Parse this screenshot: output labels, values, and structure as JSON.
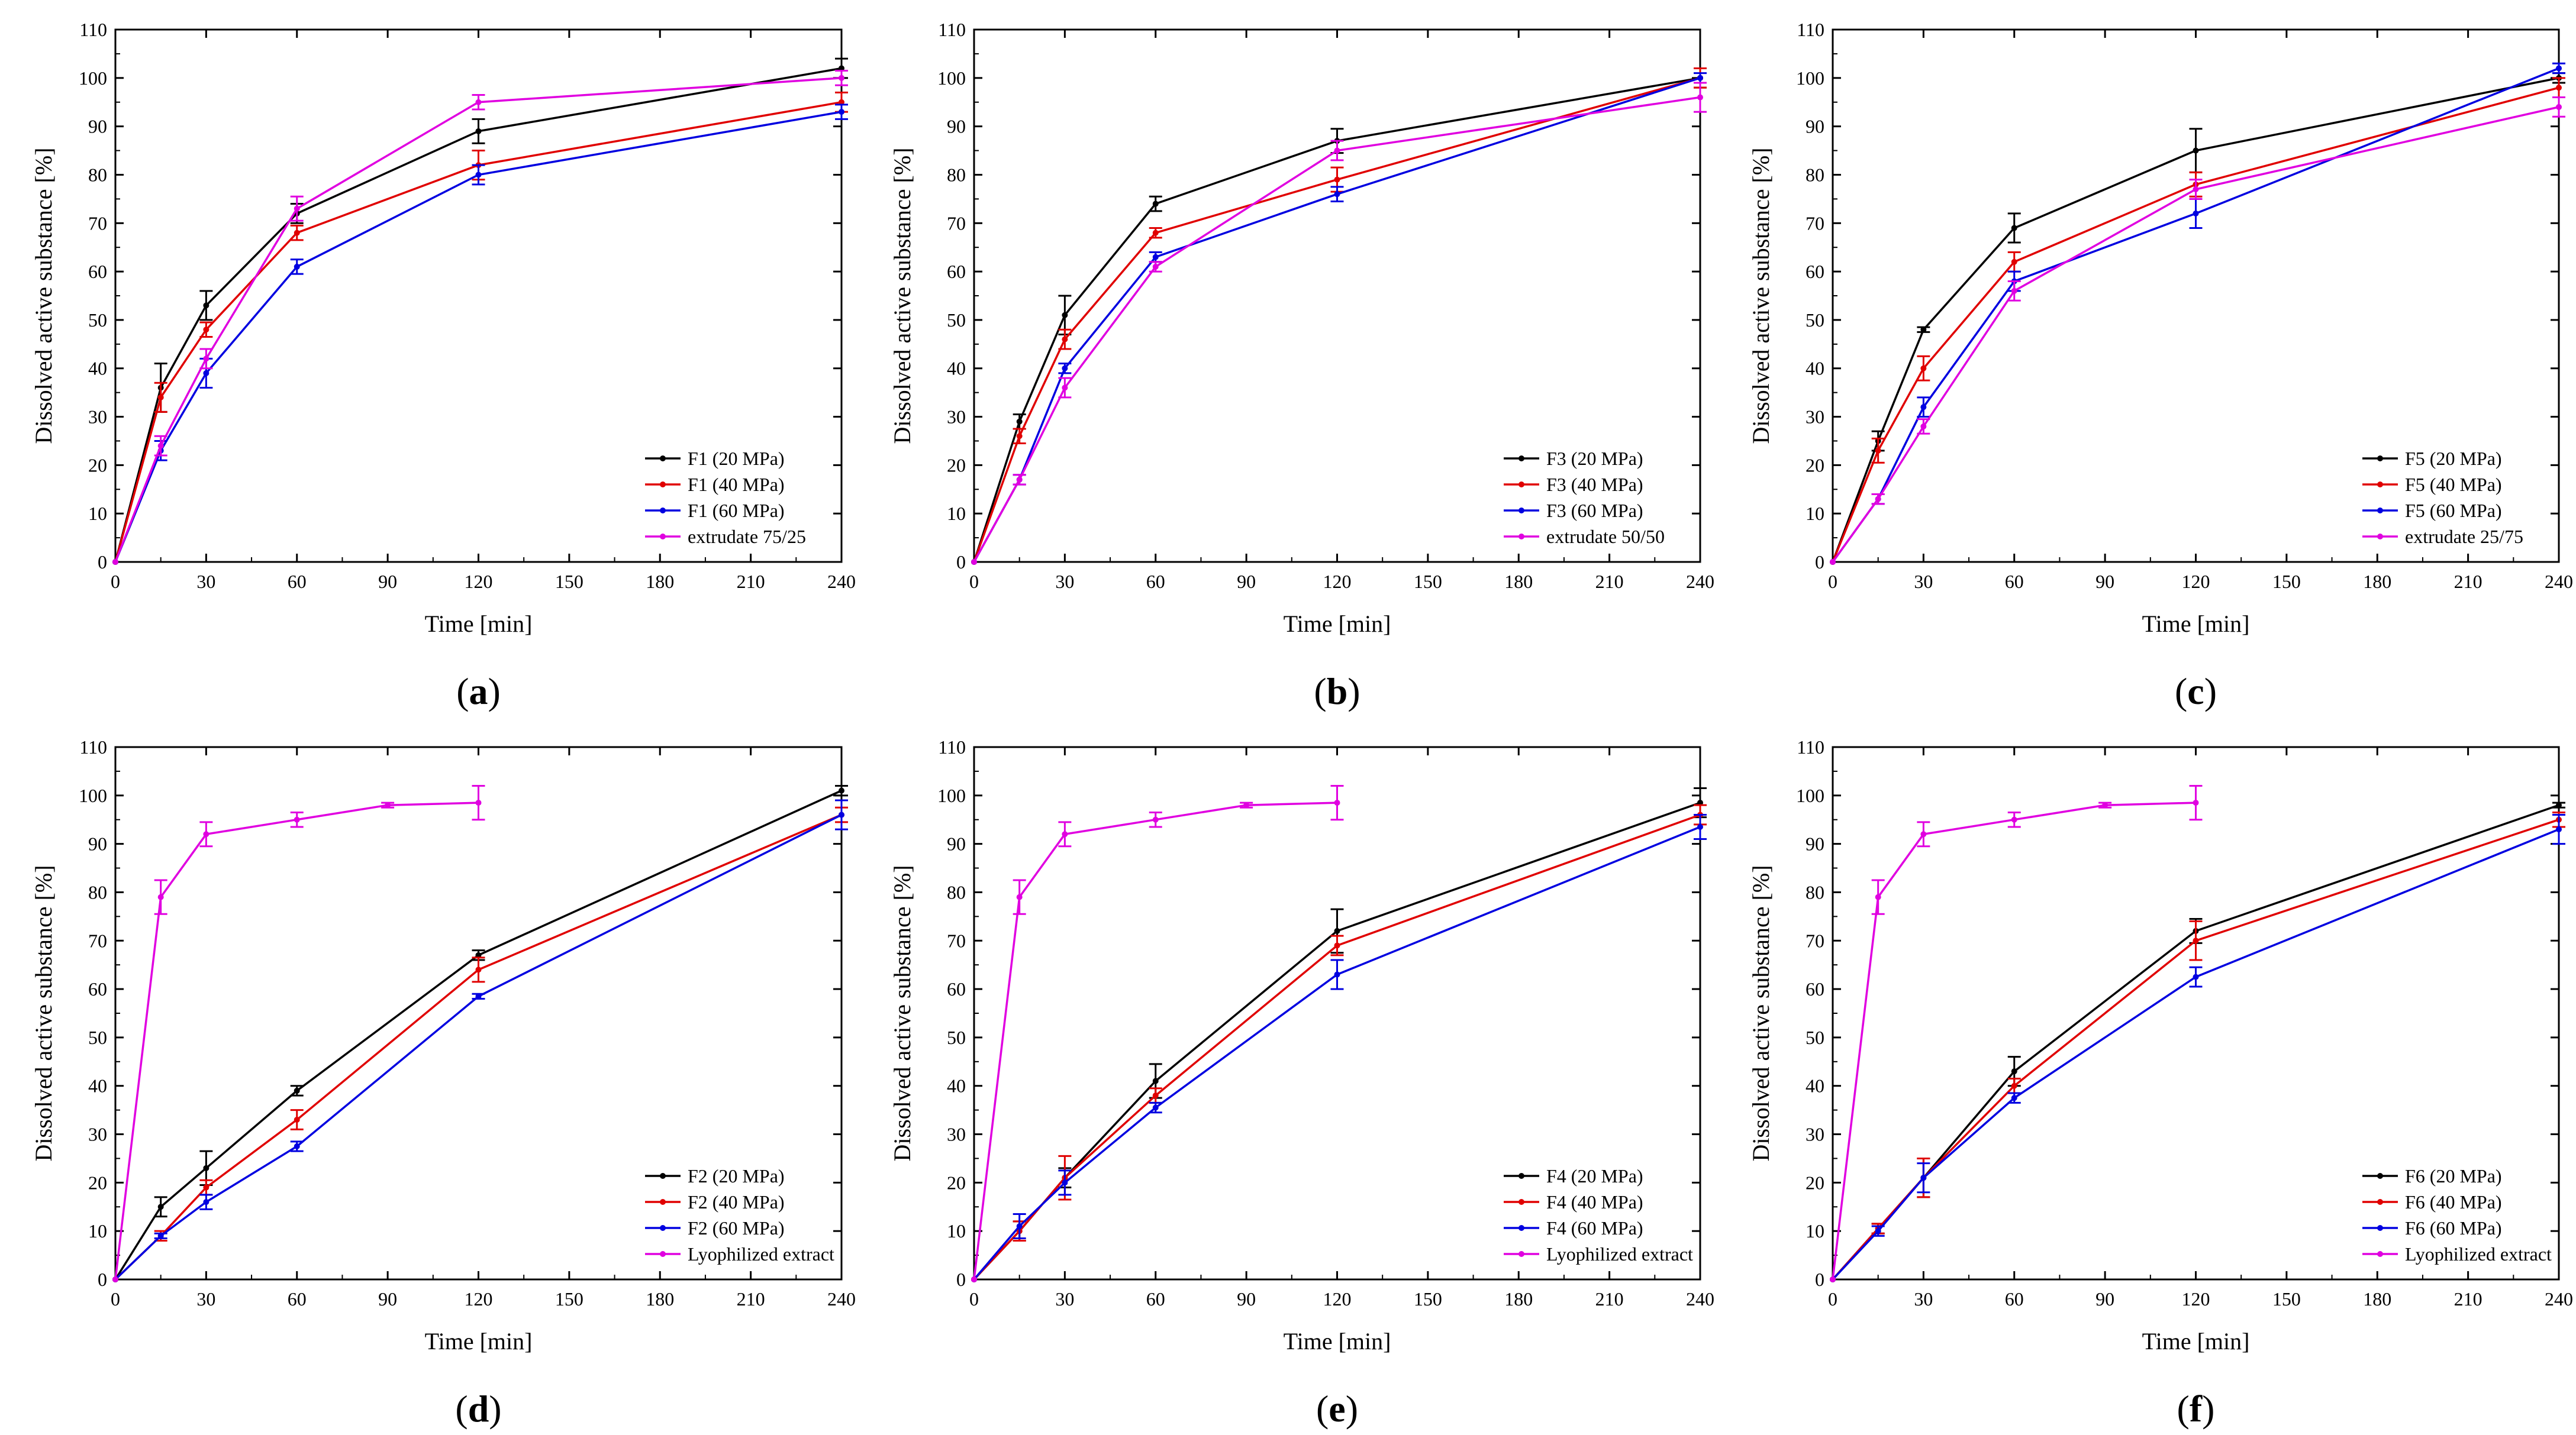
{
  "chart_data": [
    {
      "type": "line",
      "panel_label": "a",
      "xlabel": "Time [min]",
      "ylabel": "Dissolved active substance [%]",
      "xlim": [
        0,
        240
      ],
      "ylim": [
        0,
        110
      ],
      "xticks": [
        0,
        30,
        60,
        90,
        120,
        150,
        180,
        210,
        240
      ],
      "yticks": [
        0,
        10,
        20,
        30,
        40,
        50,
        60,
        70,
        80,
        90,
        100,
        110
      ],
      "legend_position": "bottom-right",
      "series": [
        {
          "name": "F1 (20 MPa)",
          "color": "#000000",
          "x": [
            0,
            15,
            30,
            60,
            120,
            240
          ],
          "y": [
            0,
            36,
            53,
            72,
            89,
            102
          ],
          "err": [
            0,
            5,
            3,
            2,
            2.5,
            2
          ]
        },
        {
          "name": "F1 (40 MPa)",
          "color": "#e00000",
          "x": [
            0,
            15,
            30,
            60,
            120,
            240
          ],
          "y": [
            0,
            34,
            48,
            68,
            82,
            95
          ],
          "err": [
            0,
            3,
            1.5,
            1.5,
            3,
            2
          ]
        },
        {
          "name": "F1 (60 MPa)",
          "color": "#0000e0",
          "x": [
            0,
            15,
            30,
            60,
            120,
            240
          ],
          "y": [
            0,
            23,
            39,
            61,
            80,
            93
          ],
          "err": [
            0,
            2,
            3,
            1.5,
            2,
            1.5
          ]
        },
        {
          "name": "extrudate 75/25",
          "color": "#e000e0",
          "x": [
            0,
            15,
            30,
            60,
            120,
            240
          ],
          "y": [
            0,
            24,
            42,
            73,
            95,
            100
          ],
          "err": [
            0,
            2,
            2,
            2.5,
            1.5,
            1.5
          ]
        }
      ]
    },
    {
      "type": "line",
      "panel_label": "b",
      "xlabel": "Time [min]",
      "ylabel": "Dissolved active substance [%]",
      "xlim": [
        0,
        240
      ],
      "ylim": [
        0,
        110
      ],
      "xticks": [
        0,
        30,
        60,
        90,
        120,
        150,
        180,
        210,
        240
      ],
      "yticks": [
        0,
        10,
        20,
        30,
        40,
        50,
        60,
        70,
        80,
        90,
        100,
        110
      ],
      "legend_position": "bottom-right",
      "series": [
        {
          "name": "F3 (20 MPa)",
          "color": "#000000",
          "x": [
            0,
            15,
            30,
            60,
            120,
            240
          ],
          "y": [
            0,
            29,
            51,
            74,
            87,
            100
          ],
          "err": [
            0,
            1.5,
            4,
            1.5,
            2.5,
            2
          ]
        },
        {
          "name": "F3 (40 MPa)",
          "color": "#e00000",
          "x": [
            0,
            15,
            30,
            60,
            120,
            240
          ],
          "y": [
            0,
            26,
            46,
            68,
            79,
            100
          ],
          "err": [
            0,
            1.5,
            2,
            1,
            2.5,
            2
          ]
        },
        {
          "name": "F3 (60 MPa)",
          "color": "#0000e0",
          "x": [
            0,
            15,
            30,
            60,
            120,
            240
          ],
          "y": [
            0,
            17,
            40,
            63,
            76,
            100
          ],
          "err": [
            0,
            1,
            1,
            1,
            1.5,
            1
          ]
        },
        {
          "name": "extrudate 50/50",
          "color": "#e000e0",
          "x": [
            0,
            15,
            30,
            60,
            120,
            240
          ],
          "y": [
            0,
            17,
            36,
            61,
            85,
            96
          ],
          "err": [
            0,
            1,
            2,
            1,
            2,
            3
          ]
        }
      ]
    },
    {
      "type": "line",
      "panel_label": "c",
      "xlabel": "Time [min]",
      "ylabel": "Dissolved active substance [%]",
      "xlim": [
        0,
        240
      ],
      "ylim": [
        0,
        110
      ],
      "xticks": [
        0,
        30,
        60,
        90,
        120,
        150,
        180,
        210,
        240
      ],
      "yticks": [
        0,
        10,
        20,
        30,
        40,
        50,
        60,
        70,
        80,
        90,
        100,
        110
      ],
      "legend_position": "bottom-right",
      "series": [
        {
          "name": "F5 (20 MPa)",
          "color": "#000000",
          "x": [
            0,
            15,
            30,
            60,
            120,
            240
          ],
          "y": [
            0,
            25,
            48,
            69,
            85,
            100
          ],
          "err": [
            0,
            2,
            0.5,
            3,
            4.5,
            1
          ]
        },
        {
          "name": "F5 (40 MPa)",
          "color": "#e00000",
          "x": [
            0,
            15,
            30,
            60,
            120,
            240
          ],
          "y": [
            0,
            23,
            40,
            62,
            78,
            98
          ],
          "err": [
            0,
            2.5,
            2.5,
            2,
            2.5,
            2
          ]
        },
        {
          "name": "F5 (60 MPa)",
          "color": "#0000e0",
          "x": [
            0,
            15,
            30,
            60,
            120,
            240
          ],
          "y": [
            0,
            13,
            32,
            58,
            72,
            102
          ],
          "err": [
            0,
            1,
            2,
            2,
            3,
            1
          ]
        },
        {
          "name": "extrudate 25/75",
          "color": "#e000e0",
          "x": [
            0,
            15,
            30,
            60,
            120,
            240
          ],
          "y": [
            0,
            13,
            28,
            56,
            77,
            94
          ],
          "err": [
            0,
            1,
            1.5,
            2,
            2,
            2
          ]
        }
      ]
    },
    {
      "type": "line",
      "panel_label": "d",
      "xlabel": "Time [min]",
      "ylabel": "Dissolved active substance [%]",
      "xlim": [
        0,
        240
      ],
      "ylim": [
        0,
        110
      ],
      "xticks": [
        0,
        30,
        60,
        90,
        120,
        150,
        180,
        210,
        240
      ],
      "yticks": [
        0,
        10,
        20,
        30,
        40,
        50,
        60,
        70,
        80,
        90,
        100,
        110
      ],
      "legend_position": "bottom-right",
      "series": [
        {
          "name": "F2 (20 MPa)",
          "color": "#000000",
          "x": [
            0,
            15,
            30,
            60,
            120,
            240
          ],
          "y": [
            0,
            15,
            23,
            39,
            67,
            101
          ],
          "err": [
            0,
            2,
            3.5,
            1,
            1,
            1
          ]
        },
        {
          "name": "F2 (40 MPa)",
          "color": "#e00000",
          "x": [
            0,
            15,
            30,
            60,
            120,
            240
          ],
          "y": [
            0,
            9,
            19,
            33,
            64,
            96
          ],
          "err": [
            0,
            1,
            1.5,
            2,
            2.5,
            1.5
          ]
        },
        {
          "name": "F2 (60 MPa)",
          "color": "#0000e0",
          "x": [
            0,
            15,
            30,
            60,
            120,
            240
          ],
          "y": [
            0,
            9,
            16,
            27.5,
            58.5,
            96
          ],
          "err": [
            0,
            0.5,
            1.5,
            1,
            0.5,
            3
          ]
        },
        {
          "name": "Lyophilized extract",
          "color": "#e000e0",
          "x": [
            0,
            15,
            30,
            60,
            90,
            120
          ],
          "y": [
            0,
            79,
            92,
            95,
            98,
            98.5
          ],
          "err": [
            0,
            3.5,
            2.5,
            1.5,
            0.5,
            3.5
          ]
        }
      ]
    },
    {
      "type": "line",
      "panel_label": "e",
      "xlabel": "Time [min]",
      "ylabel": "Dissolved active substance [%]",
      "xlim": [
        0,
        240
      ],
      "ylim": [
        0,
        110
      ],
      "xticks": [
        0,
        30,
        60,
        90,
        120,
        150,
        180,
        210,
        240
      ],
      "yticks": [
        0,
        10,
        20,
        30,
        40,
        50,
        60,
        70,
        80,
        90,
        100,
        110
      ],
      "legend_position": "bottom-right",
      "series": [
        {
          "name": "F4 (20 MPa)",
          "color": "#000000",
          "x": [
            0,
            15,
            30,
            60,
            120,
            240
          ],
          "y": [
            0,
            10,
            21,
            41,
            72,
            98.5
          ],
          "err": [
            0,
            2,
            2,
            3.5,
            4.5,
            3
          ]
        },
        {
          "name": "F4 (40 MPa)",
          "color": "#e00000",
          "x": [
            0,
            15,
            30,
            60,
            120,
            240
          ],
          "y": [
            0,
            10,
            21,
            38,
            69,
            96
          ],
          "err": [
            0,
            2,
            4.5,
            1.5,
            2,
            2
          ]
        },
        {
          "name": "F4 (60 MPa)",
          "color": "#0000e0",
          "x": [
            0,
            15,
            30,
            60,
            120,
            240
          ],
          "y": [
            0,
            11,
            20,
            35.5,
            63,
            93.5
          ],
          "err": [
            0,
            2.5,
            2.5,
            1,
            3,
            2.5
          ]
        },
        {
          "name": "Lyophilized extract",
          "color": "#e000e0",
          "x": [
            0,
            15,
            30,
            60,
            90,
            120
          ],
          "y": [
            0,
            79,
            92,
            95,
            98,
            98.5
          ],
          "err": [
            0,
            3.5,
            2.5,
            1.5,
            0.5,
            3.5
          ]
        }
      ]
    },
    {
      "type": "line",
      "panel_label": "f",
      "xlabel": "Time [min]",
      "ylabel": "Dissolved active substance [%]",
      "xlim": [
        0,
        240
      ],
      "ylim": [
        0,
        110
      ],
      "xticks": [
        0,
        30,
        60,
        90,
        120,
        150,
        180,
        210,
        240
      ],
      "yticks": [
        0,
        10,
        20,
        30,
        40,
        50,
        60,
        70,
        80,
        90,
        100,
        110
      ],
      "legend_position": "bottom-right",
      "series": [
        {
          "name": "F6 (20 MPa)",
          "color": "#000000",
          "x": [
            0,
            15,
            30,
            60,
            120,
            240
          ],
          "y": [
            0,
            10.5,
            21,
            43,
            72,
            98
          ],
          "err": [
            0,
            1,
            4,
            3,
            2.5,
            0.5
          ]
        },
        {
          "name": "F6 (40 MPa)",
          "color": "#e00000",
          "x": [
            0,
            15,
            30,
            60,
            120,
            240
          ],
          "y": [
            0,
            10.5,
            21,
            40,
            70,
            95
          ],
          "err": [
            0,
            1,
            4,
            1.5,
            4,
            1.5
          ]
        },
        {
          "name": "F6 (60 MPa)",
          "color": "#0000e0",
          "x": [
            0,
            15,
            30,
            60,
            120,
            240
          ],
          "y": [
            0,
            10,
            21,
            37.5,
            62.5,
            93
          ],
          "err": [
            0,
            1,
            3,
            1,
            2,
            3
          ]
        },
        {
          "name": "Lyophilized extract",
          "color": "#e000e0",
          "x": [
            0,
            15,
            30,
            60,
            90,
            120
          ],
          "y": [
            0,
            79,
            92,
            95,
            98,
            98.5
          ],
          "err": [
            0,
            3.5,
            2.5,
            1.5,
            0.5,
            3.5
          ]
        }
      ]
    }
  ]
}
